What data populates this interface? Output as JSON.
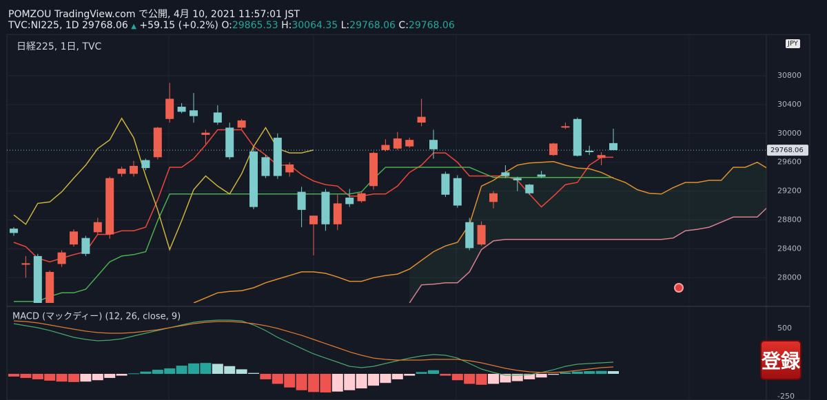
{
  "header": {
    "line1": "POMZOU TradingView.com で公開, 4月 10, 2021 11:57:01 JST",
    "symbol": "TVC:NI225, 1D 29768.06",
    "arrow": "▲",
    "change": "+59.15 (+0.2%)",
    "o_label": "O:",
    "o_value": "29865.53",
    "h_label": "H:",
    "h_value": "30064.35",
    "l_label": "L:",
    "l_value": "29768.06",
    "c_label": "C:",
    "c_value": "29768.06",
    "currency": "JPY",
    "button": "登録"
  },
  "chart_data": [
    {
      "type": "candlestick",
      "title": "日経225, 1日, TVC",
      "up_color": "#f0604f",
      "down_color": "#7ecbcb",
      "ylim": [
        27650,
        31420
      ],
      "yticks": [
        28000,
        28400,
        28800,
        29200,
        29600,
        30000,
        30400,
        30800
      ],
      "grid": true,
      "cloud_color": "rgba(80,150,90,0.10)",
      "open": [
        28680,
        28180,
        28300,
        27620,
        28190,
        28460,
        28550,
        28630,
        28600,
        29440,
        29440,
        29630,
        29670,
        30200,
        30370,
        30320,
        29980,
        30290,
        30080,
        30080,
        29750,
        29670,
        29940,
        29460,
        29190,
        28740,
        29190,
        28740,
        29110,
        29060,
        29270,
        29770,
        29790,
        29820,
        30150,
        29910,
        29440,
        29380,
        28770,
        28460,
        29050,
        29460,
        29380,
        29290,
        29430,
        29700,
        30080,
        30200,
        29760,
        29660,
        29865.53
      ],
      "high": [
        28700,
        28300,
        28330,
        28100,
        28380,
        28670,
        28580,
        28830,
        29400,
        29540,
        29620,
        29650,
        30090,
        30700,
        30420,
        30560,
        30050,
        30390,
        30150,
        30200,
        29800,
        29700,
        30000,
        29600,
        29260,
        28860,
        29230,
        29150,
        29230,
        29200,
        29750,
        29920,
        30020,
        29940,
        30480,
        30050,
        29470,
        29420,
        28830,
        28780,
        29200,
        29560,
        29400,
        29300,
        29480,
        29870,
        30150,
        30220,
        29830,
        29740,
        30064.35
      ],
      "low": [
        28580,
        28000,
        27600,
        27600,
        28150,
        28430,
        28300,
        28600,
        28540,
        29400,
        29400,
        29490,
        29640,
        30150,
        30280,
        30150,
        29850,
        30120,
        29640,
        30060,
        28950,
        29380,
        29370,
        29400,
        28700,
        28310,
        28650,
        28660,
        28980,
        29040,
        29220,
        29750,
        29770,
        29800,
        30100,
        29650,
        29120,
        28970,
        28380,
        28440,
        28960,
        29380,
        29200,
        29150,
        29380,
        29690,
        30060,
        29680,
        29700,
        29560,
        29768.06
      ],
      "close": [
        28620,
        28200,
        27620,
        28080,
        28350,
        28640,
        28330,
        28770,
        29380,
        29510,
        29550,
        29520,
        30080,
        30480,
        30300,
        30240,
        30010,
        30150,
        29670,
        30180,
        28980,
        29410,
        29410,
        29570,
        28940,
        28860,
        28740,
        29030,
        29020,
        29170,
        29730,
        29840,
        29930,
        29910,
        30230,
        29780,
        29150,
        29000,
        28410,
        28730,
        29170,
        29410,
        29350,
        29170,
        29400,
        29860,
        30100,
        29690,
        29740,
        29700,
        29768.06
      ],
      "lines": [
        {
          "color": "#f0473a",
          "values": [
            28490,
            28430,
            28270,
            28220,
            28270,
            28320,
            28360,
            28600,
            28600,
            28650,
            28650,
            28700,
            29080,
            29530,
            29530,
            29650,
            29840,
            30050,
            30050,
            30050,
            29820,
            29700,
            29560,
            29560,
            29430,
            29340,
            29290,
            29270,
            29130,
            29130,
            29160,
            29160,
            29270,
            29460,
            29560,
            29730,
            29730,
            29600,
            29410,
            29410,
            29410,
            29410,
            29350,
            29160,
            28980,
            29130,
            29290,
            29320,
            29560,
            29670,
            29670
          ]
        },
        {
          "color": "#4caf50",
          "values": [
            27670,
            27670,
            27670,
            27740,
            27790,
            27790,
            27840,
            28030,
            28220,
            28300,
            28320,
            28360,
            28790,
            29160,
            29160,
            29160,
            29160,
            29160,
            29160,
            29160,
            29160,
            29160,
            29160,
            29160,
            29160,
            29160,
            29160,
            29160,
            29160,
            29190,
            29370,
            29530,
            29530,
            29530,
            29530,
            29530,
            29530,
            29530,
            29530,
            29460,
            29390,
            29390,
            29390,
            29390,
            29390,
            29390,
            29390,
            29390,
            29390,
            29390,
            29390
          ]
        },
        {
          "color": "#cdb43c",
          "values": [
            28870,
            28740,
            29030,
            29050,
            29190,
            29380,
            29560,
            29790,
            29910,
            30210,
            29940,
            29410,
            28940,
            28390,
            28790,
            29220,
            29410,
            29270,
            29160,
            29440,
            29820,
            30080,
            29790,
            29730,
            29730,
            29770
          ]
        },
        {
          "color": "#e0912e",
          "values": [
            null,
            null,
            null,
            null,
            null,
            null,
            null,
            null,
            null,
            null,
            null,
            null,
            null,
            null,
            null,
            27650,
            27720,
            27790,
            27810,
            27820,
            27860,
            27930,
            27980,
            28030,
            28080,
            28080,
            28060,
            28010,
            27950,
            27950,
            28000,
            28030,
            28050,
            28120,
            28240,
            28360,
            28440,
            28490,
            28740,
            29270,
            29350,
            29460,
            29560,
            29590,
            29600,
            29610,
            29560,
            29520,
            29510,
            29460,
            29380,
            29320,
            29220,
            29170,
            29160,
            29250,
            29320,
            29320,
            29350,
            29350,
            29530,
            29530,
            29600,
            29500
          ]
        },
        {
          "color": "#d9818f",
          "values": [
            null,
            null,
            null,
            null,
            null,
            null,
            null,
            null,
            null,
            null,
            null,
            null,
            null,
            null,
            null,
            null,
            null,
            null,
            null,
            null,
            null,
            null,
            null,
            null,
            null,
            null,
            null,
            null,
            null,
            null,
            null,
            null,
            null,
            27650,
            27900,
            27910,
            27930,
            27930,
            28080,
            28390,
            28510,
            28530,
            28530,
            28530,
            28530,
            28530,
            28530,
            28530,
            28530,
            28530,
            28530,
            28530,
            28530,
            28530,
            28530,
            28550,
            28650,
            28670,
            28700,
            28770,
            28840,
            28840,
            28840,
            29000
          ]
        }
      ]
    },
    {
      "type": "macd",
      "title": "MACD (マックディー) (12, 26, close, 9)",
      "ylim": [
        -288,
        705
      ],
      "yticks": [
        500,
        -250
      ],
      "histogram_colors": {
        "up_rising": "#26a69a",
        "up_falling": "#b2dfdb",
        "down_falling": "#ef5350",
        "down_rising": "#ffcdd2"
      },
      "histogram": [
        -30,
        -45,
        -60,
        -75,
        -85,
        -90,
        -85,
        -70,
        -45,
        -20,
        5,
        25,
        45,
        60,
        90,
        115,
        120,
        110,
        85,
        50,
        10,
        -60,
        -110,
        -150,
        -180,
        -200,
        -205,
        -195,
        -180,
        -160,
        -130,
        -100,
        -60,
        -20,
        20,
        40,
        -20,
        -70,
        -110,
        -120,
        -110,
        -95,
        -80,
        -60,
        -40,
        -10,
        15,
        25,
        30,
        32,
        30
      ],
      "lines": [
        {
          "color": "#4aa86e",
          "values": [
            553,
            530,
            508,
            477,
            440,
            402,
            379,
            364,
            371,
            386,
            417,
            447,
            477,
            508,
            538,
            568,
            583,
            591,
            591,
            583,
            538,
            477,
            402,
            341,
            280,
            220,
            174,
            129,
            83,
            68,
            83,
            114,
            144,
            174,
            197,
            212,
            205,
            174,
            114,
            53,
            15,
            -15,
            -15,
            -8,
            15,
            45,
            83,
            106,
            114,
            121,
            129
          ]
        },
        {
          "color": "#e07b30",
          "values": [
            583,
            576,
            561,
            538,
            515,
            492,
            470,
            455,
            447,
            447,
            455,
            470,
            485,
            508,
            530,
            553,
            568,
            576,
            576,
            568,
            553,
            530,
            500,
            462,
            424,
            379,
            333,
            288,
            242,
            205,
            174,
            159,
            152,
            152,
            152,
            159,
            159,
            159,
            144,
            121,
            91,
            61,
            38,
            23,
            15,
            15,
            23,
            38,
            53,
            68,
            76
          ]
        }
      ]
    }
  ]
}
